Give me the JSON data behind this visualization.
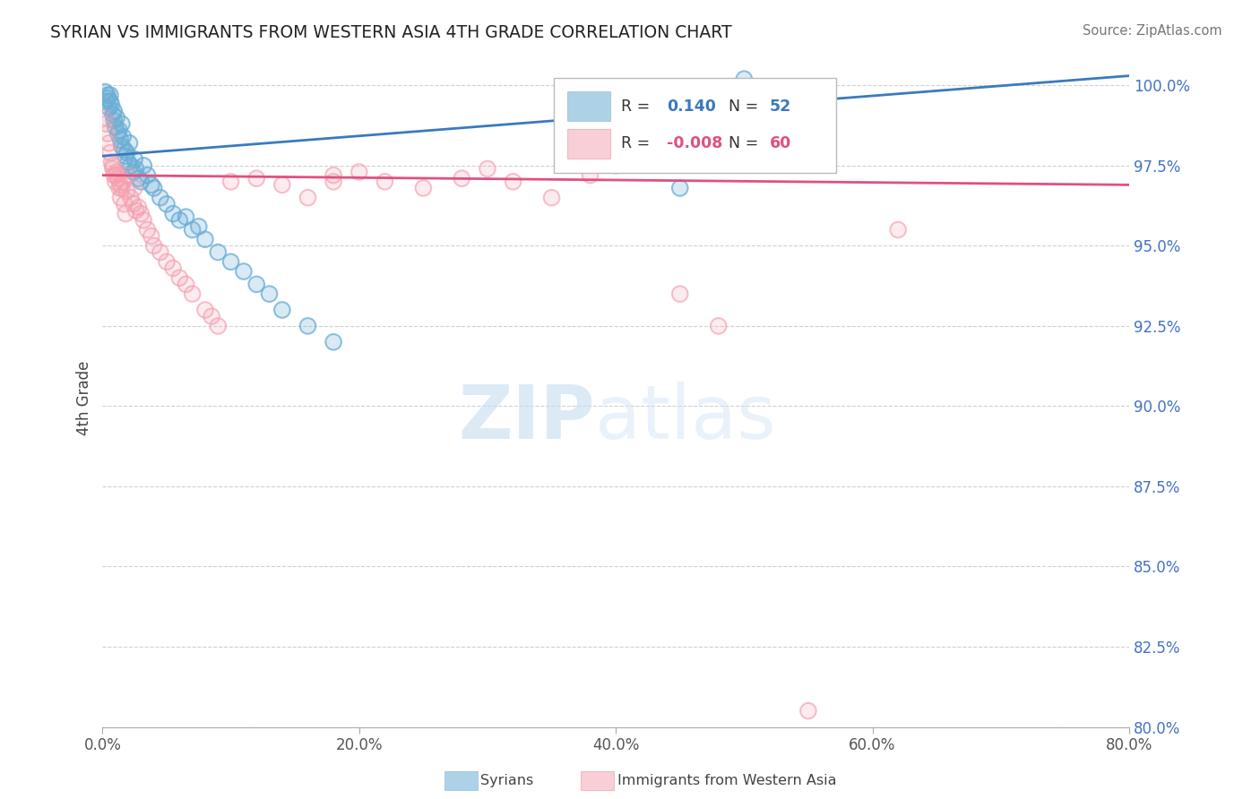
{
  "title": "SYRIAN VS IMMIGRANTS FROM WESTERN ASIA 4TH GRADE CORRELATION CHART",
  "source": "Source: ZipAtlas.com",
  "xlabel_vals": [
    0.0,
    20.0,
    40.0,
    60.0,
    80.0
  ],
  "ylabel_vals": [
    80.0,
    82.5,
    85.0,
    87.5,
    90.0,
    92.5,
    95.0,
    97.5,
    100.0
  ],
  "xlim": [
    0.0,
    80.0
  ],
  "ylim": [
    80.0,
    100.5
  ],
  "blue_R": 0.14,
  "blue_N": 52,
  "pink_R": -0.008,
  "pink_N": 60,
  "blue_color": "#6baed6",
  "pink_color": "#f4a0b0",
  "blue_line_color": "#3a7abf",
  "pink_line_color": "#e05080",
  "legend_label_blue": "Syrians",
  "legend_label_pink": "Immigrants from Western Asia",
  "ylabel": "4th Grade",
  "blue_scatter_x": [
    0.2,
    0.3,
    0.4,
    0.5,
    0.6,
    0.7,
    0.8,
    0.9,
    1.0,
    1.1,
    1.2,
    1.3,
    1.4,
    1.5,
    1.6,
    1.7,
    1.8,
    1.9,
    2.0,
    2.2,
    2.4,
    2.6,
    2.8,
    3.0,
    3.5,
    4.0,
    4.5,
    5.0,
    5.5,
    6.0,
    7.0,
    8.0,
    9.0,
    10.0,
    11.0,
    12.0,
    13.0,
    14.0,
    16.0,
    18.0,
    3.2,
    3.8,
    6.5,
    45.0,
    50.0,
    2.1,
    1.5,
    0.9,
    0.6,
    0.4,
    2.5,
    7.5
  ],
  "blue_scatter_y": [
    99.8,
    99.5,
    99.6,
    99.3,
    99.7,
    99.4,
    99.1,
    98.9,
    98.7,
    99.0,
    98.5,
    98.6,
    98.3,
    98.1,
    98.4,
    98.0,
    97.8,
    97.9,
    97.6,
    97.5,
    97.3,
    97.4,
    97.1,
    97.0,
    97.2,
    96.8,
    96.5,
    96.3,
    96.0,
    95.8,
    95.5,
    95.2,
    94.8,
    94.5,
    94.2,
    93.8,
    93.5,
    93.0,
    92.5,
    92.0,
    97.5,
    96.9,
    95.9,
    96.8,
    100.2,
    98.2,
    98.8,
    99.2,
    99.5,
    99.7,
    97.7,
    95.6
  ],
  "pink_scatter_x": [
    0.2,
    0.3,
    0.4,
    0.5,
    0.6,
    0.7,
    0.8,
    0.9,
    1.0,
    1.1,
    1.2,
    1.3,
    1.4,
    1.5,
    1.6,
    1.7,
    1.8,
    2.0,
    2.2,
    2.5,
    2.8,
    3.0,
    3.5,
    4.0,
    4.5,
    5.0,
    6.0,
    7.0,
    8.0,
    9.0,
    10.0,
    12.0,
    14.0,
    16.0,
    18.0,
    20.0,
    22.0,
    25.0,
    28.0,
    32.0,
    35.0,
    38.0,
    40.0,
    45.0,
    3.2,
    1.9,
    2.4,
    0.8,
    1.1,
    1.4,
    2.6,
    3.8,
    5.5,
    6.5,
    8.5,
    30.0,
    48.0,
    55.0,
    62.0,
    18.0
  ],
  "pink_scatter_y": [
    99.0,
    98.8,
    98.5,
    98.2,
    97.9,
    97.6,
    97.4,
    97.2,
    97.0,
    97.3,
    97.1,
    96.8,
    96.5,
    96.8,
    97.0,
    96.3,
    96.0,
    97.2,
    96.5,
    96.8,
    96.2,
    96.0,
    95.5,
    95.0,
    94.8,
    94.5,
    94.0,
    93.5,
    93.0,
    92.5,
    97.0,
    97.1,
    96.9,
    96.5,
    97.2,
    97.3,
    97.0,
    96.8,
    97.1,
    97.0,
    96.5,
    97.2,
    97.5,
    93.5,
    95.8,
    96.7,
    96.3,
    97.5,
    97.2,
    96.9,
    96.1,
    95.3,
    94.3,
    93.8,
    92.8,
    97.4,
    92.5,
    80.5,
    95.5,
    97.0
  ],
  "blue_line_x0": 0.0,
  "blue_line_y0": 97.8,
  "blue_line_x1": 80.0,
  "blue_line_y1": 100.3,
  "pink_line_x0": 0.0,
  "pink_line_y0": 97.2,
  "pink_line_x1": 80.0,
  "pink_line_y1": 96.9
}
